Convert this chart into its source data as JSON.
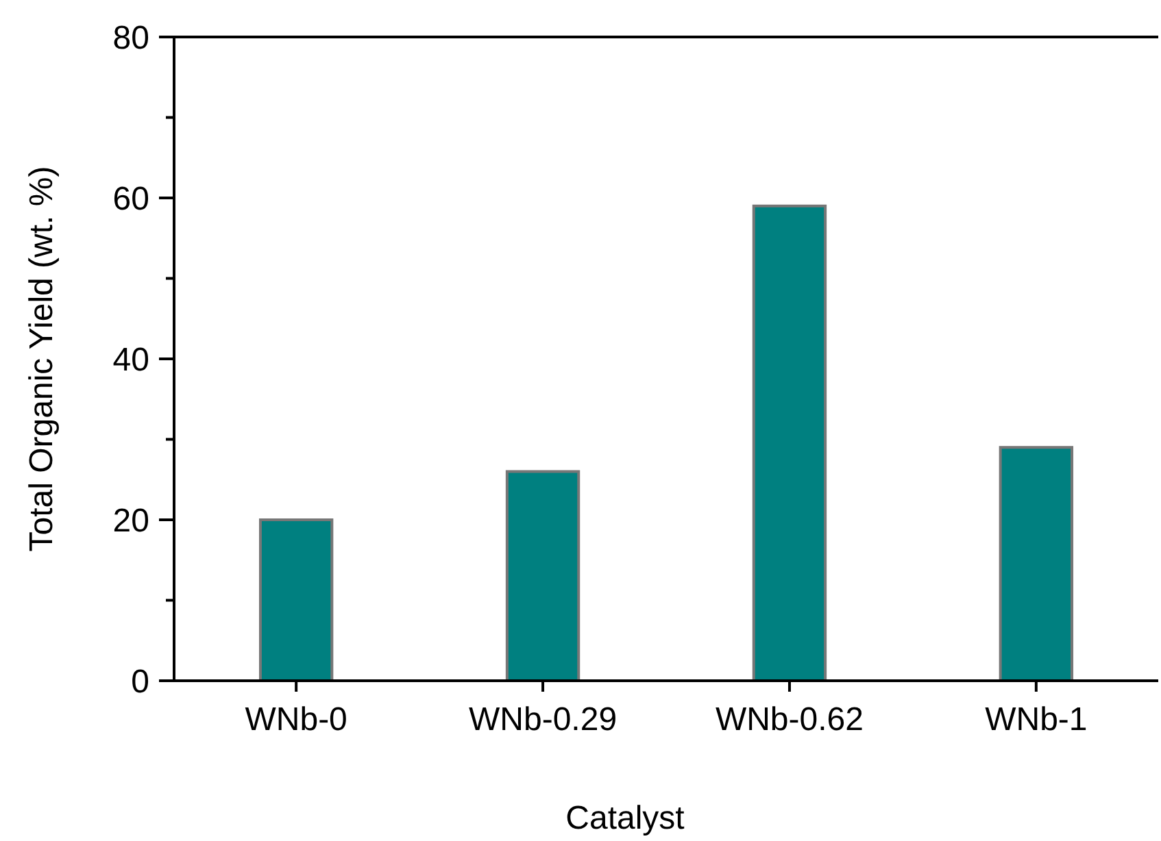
{
  "chart_data": {
    "type": "bar",
    "xlabel": "Catalyst",
    "ylabel": "Total Organic Yield (wt. %)",
    "categories": [
      "WNb-0",
      "WNb-0.29",
      "WNb-0.62",
      "WNb-1"
    ],
    "values": [
      20,
      26,
      59,
      29
    ],
    "color": "#008080",
    "ylim": [
      0,
      80
    ],
    "yticks": [
      0,
      {
        "value": 10,
        "label": null
      },
      20,
      {
        "value": 30,
        "label": null
      },
      40,
      {
        "value": 50,
        "label": null
      },
      60,
      {
        "value": 70,
        "label": null
      },
      80
    ],
    "grid": false
  }
}
